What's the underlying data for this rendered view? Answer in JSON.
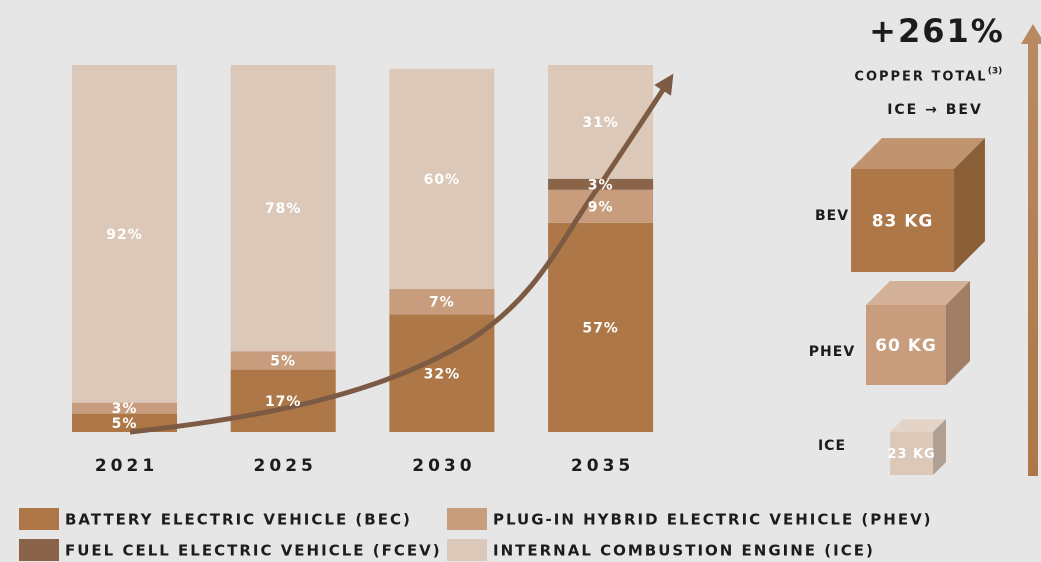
{
  "chart_data": {
    "type": "bar",
    "stacked": true,
    "categories": [
      "2021",
      "2025",
      "2030",
      "2035"
    ],
    "ylim": [
      0,
      100
    ],
    "series": [
      {
        "name": "BATTERY ELECTRIC VEHICLE (BEC)",
        "color": "#ad7747",
        "values": [
          5,
          17,
          32,
          57
        ],
        "value_labels": [
          "5%",
          "17%",
          "32%",
          "57%"
        ]
      },
      {
        "name": "PLUG-IN HYBRID ELECTRIC VEHICLE (PHEV)",
        "color": "#c89d7e",
        "values": [
          3,
          5,
          7,
          9
        ],
        "value_labels": [
          "3%",
          "5%",
          "7%",
          "9%"
        ]
      },
      {
        "name": "FUEL CELL ELECTRIC VEHICLE (FCEV)",
        "color": "#8a6449",
        "values": [
          0,
          0,
          0,
          3
        ],
        "value_labels": [
          null,
          null,
          null,
          "3%"
        ]
      },
      {
        "name": "INTERNAL COMBUSTION ENGINE (ICE)",
        "color": "#dcc8b8",
        "values": [
          92,
          78,
          60,
          31
        ],
        "value_labels": [
          "92%",
          "78%",
          "60%",
          "31%"
        ]
      }
    ]
  },
  "copper": {
    "headline": "+261%",
    "title": "COPPER TOTAL",
    "note": "(3)",
    "subtitle": "ICE → BEV",
    "items": [
      {
        "name": "BEV",
        "value": 83,
        "label": "83 KG",
        "color": "#ad7747"
      },
      {
        "name": "PHEV",
        "value": 60,
        "label": "60 KG",
        "color": "#c89d7e"
      },
      {
        "name": "ICE",
        "value": 23,
        "label": "23 KG",
        "color": "#dcc8b8"
      }
    ]
  }
}
